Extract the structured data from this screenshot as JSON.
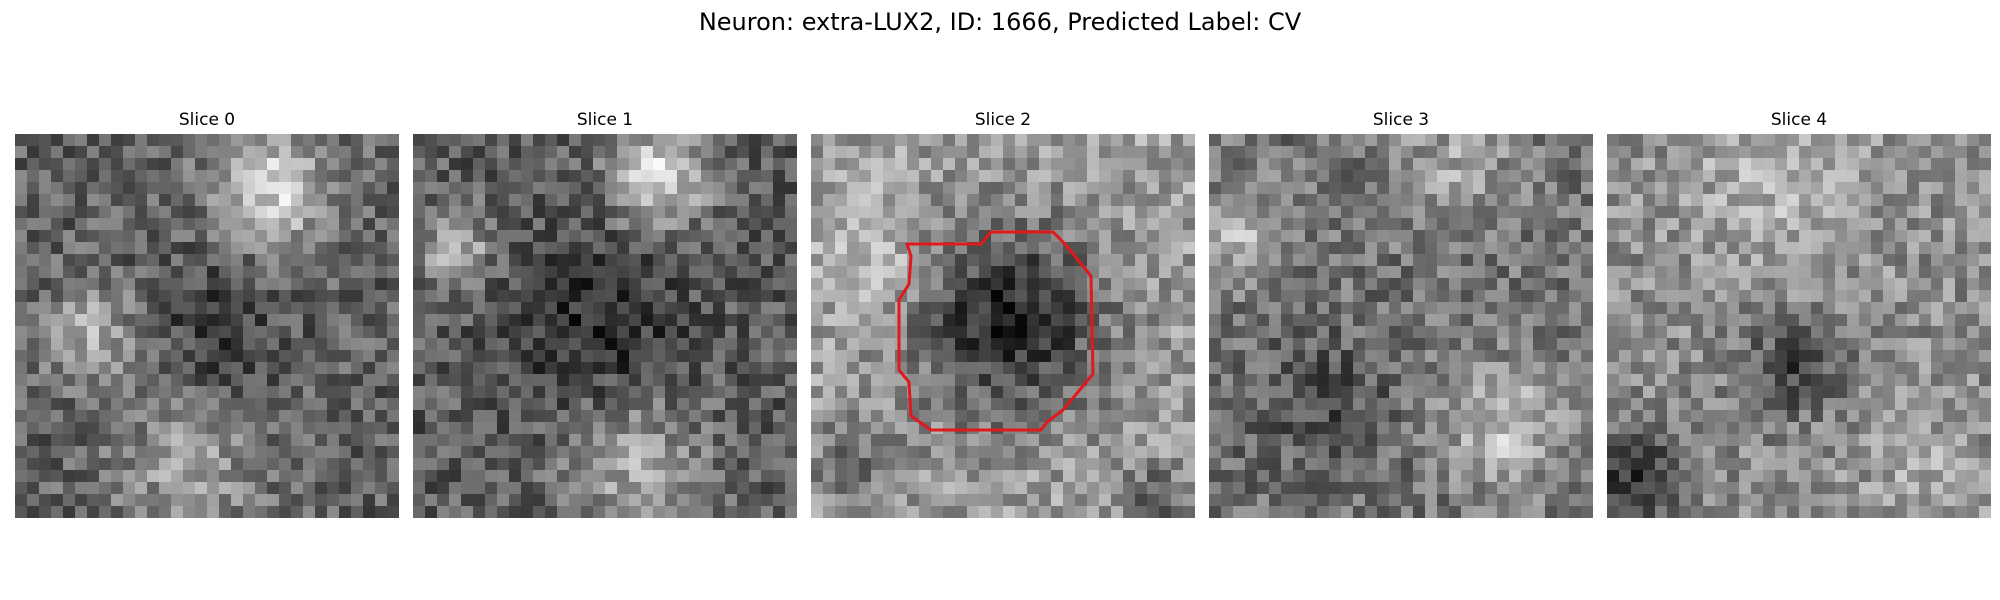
{
  "figure": {
    "title": "Neuron: extra-LUX2, ID: 1666, Predicted Label: CV"
  },
  "panels": [
    {
      "title": "Slice 0",
      "pattern": "bright-top-right-and-left-band",
      "seed": 11,
      "has_contour": false
    },
    {
      "title": "Slice 1",
      "pattern": "bright-top-center-and-bottom-band",
      "seed": 23,
      "has_contour": false
    },
    {
      "title": "Slice 2",
      "pattern": "dark-center-blob",
      "seed": 37,
      "has_contour": true
    },
    {
      "title": "Slice 3",
      "pattern": "bright-left-and-bottom-right",
      "seed": 41,
      "has_contour": false
    },
    {
      "title": "Slice 4",
      "pattern": "bright-top-dark-bottom-left",
      "seed": 53,
      "has_contour": false
    }
  ],
  "grid_cells_per_side": 32,
  "colors": {
    "contour": "#e0191c",
    "background": "#ffffff"
  }
}
